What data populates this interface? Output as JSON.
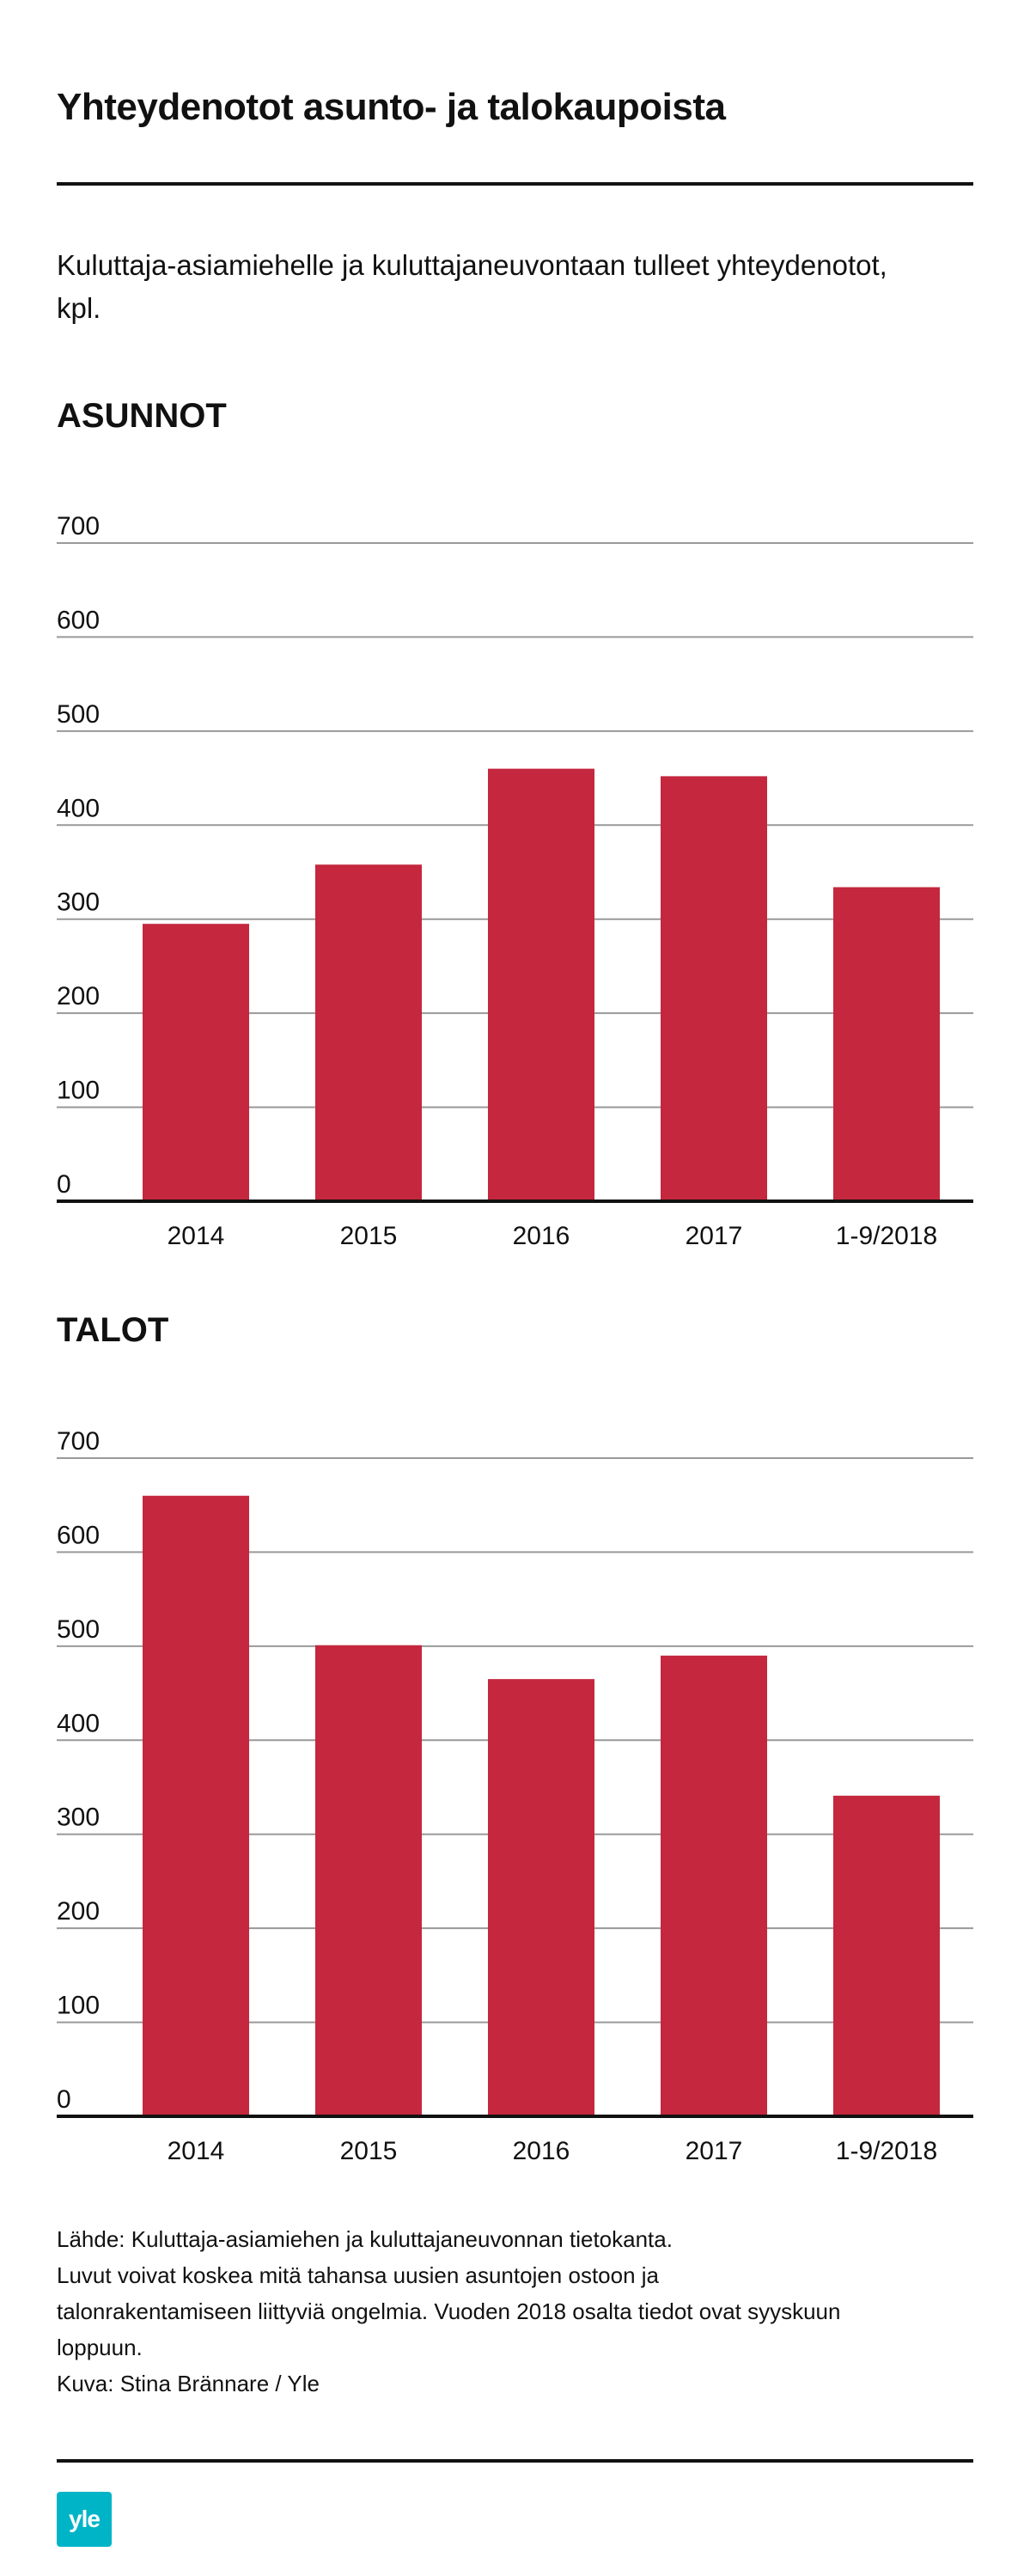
{
  "header": {
    "title": "Yhteydenotot asunto- ja talokaupoista",
    "subtitle": "Kuluttaja-asiamiehelle ja kuluttajaneuvontaan tulleet yhteydenotot, kpl."
  },
  "colors": {
    "bar": "#c4273e",
    "grid": "#999999",
    "axis": "#111111",
    "logo": "#00b4c8"
  },
  "chart_data": [
    {
      "type": "bar",
      "title": "ASUNNOT",
      "categories": [
        "2014",
        "2015",
        "2016",
        "2017",
        "1-9/2018"
      ],
      "values": [
        295,
        358,
        460,
        452,
        334
      ],
      "yticks": [
        0,
        100,
        200,
        300,
        400,
        500,
        600,
        700
      ],
      "ylim": [
        0,
        700
      ],
      "grid": true,
      "legend": "none"
    },
    {
      "type": "bar",
      "title": "TALOT",
      "categories": [
        "2014",
        "2015",
        "2016",
        "2017",
        "1-9/2018"
      ],
      "values": [
        660,
        501,
        465,
        490,
        341
      ],
      "yticks": [
        0,
        100,
        200,
        300,
        400,
        500,
        600,
        700
      ],
      "ylim": [
        0,
        700
      ],
      "grid": true,
      "legend": "none"
    }
  ],
  "footer": {
    "lines": [
      "Lähde: Kuluttaja-asiamiehen ja kuluttajaneuvonnan tietokanta.",
      "Luvut voivat koskea mitä tahansa uusien asuntojen ostoon ja",
      "talonrakentamiseen liittyviä ongelmia. Vuoden 2018 osalta tiedot ovat syyskuun",
      "loppuun.",
      "Kuva: Stina Brännare / Yle"
    ],
    "logo_text": "yle",
    "logo_icon": "yle-logo-icon"
  }
}
